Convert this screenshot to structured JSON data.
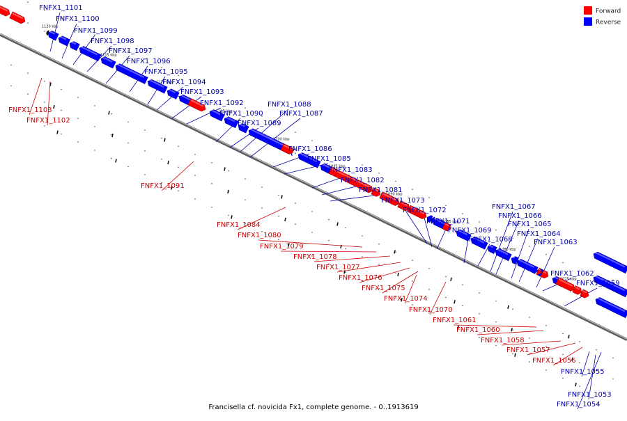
{
  "colors": {
    "forward": "#ff0000",
    "reverse": "#0000ff",
    "forward_label": "#cc0000",
    "reverse_label": "#0000aa",
    "backbone": "#808080"
  },
  "legend": [
    {
      "label": "Forward",
      "color": "#ff0000"
    },
    {
      "label": "Reverse",
      "color": "#0000ff"
    }
  ],
  "caption": "Francisella cf. novicida Fx1, complete genome. - 0..1913619",
  "ticks": [
    "1120 kbp",
    "1115 kbp",
    "1110 kbp",
    "1105 kbp",
    "1100 kbp",
    "1095 kbp",
    "1090 kbp",
    "1085 kbp",
    "1080 kbp",
    "1075 kbp"
  ],
  "genes": [
    {
      "id": "FNFX1_1103",
      "strand": "forward"
    },
    {
      "id": "FNFX1_1102",
      "strand": "forward"
    },
    {
      "id": "FNFX1_1101",
      "strand": "reverse"
    },
    {
      "id": "FNFX1_1100",
      "strand": "reverse"
    },
    {
      "id": "FNFX1_1099",
      "strand": "reverse"
    },
    {
      "id": "FNFX1_1098",
      "strand": "reverse"
    },
    {
      "id": "FNFX1_1097",
      "strand": "reverse"
    },
    {
      "id": "FNFX1_1096",
      "strand": "reverse"
    },
    {
      "id": "FNFX1_1095",
      "strand": "reverse"
    },
    {
      "id": "FNFX1_1094",
      "strand": "reverse"
    },
    {
      "id": "FNFX1_1093",
      "strand": "reverse"
    },
    {
      "id": "FNFX1_1092",
      "strand": "reverse"
    },
    {
      "id": "FNFX1_1091",
      "strand": "forward"
    },
    {
      "id": "FNFX1_1090",
      "strand": "reverse"
    },
    {
      "id": "FNFX1_1089",
      "strand": "reverse"
    },
    {
      "id": "FNFX1_1088",
      "strand": "reverse"
    },
    {
      "id": "FNFX1_1087",
      "strand": "reverse"
    },
    {
      "id": "FNFX1_1086",
      "strand": "reverse"
    },
    {
      "id": "FNFX1_1085",
      "strand": "reverse"
    },
    {
      "id": "FNFX1_1084",
      "strand": "forward"
    },
    {
      "id": "FNFX1_1083",
      "strand": "reverse"
    },
    {
      "id": "FNFX1_1082",
      "strand": "reverse"
    },
    {
      "id": "FNFX1_1081",
      "strand": "reverse"
    },
    {
      "id": "FNFX1_1080",
      "strand": "forward"
    },
    {
      "id": "FNFX1_1079",
      "strand": "forward"
    },
    {
      "id": "FNFX1_1078",
      "strand": "forward"
    },
    {
      "id": "FNFX1_1077",
      "strand": "forward"
    },
    {
      "id": "FNFX1_1076",
      "strand": "forward"
    },
    {
      "id": "FNFX1_1075",
      "strand": "forward"
    },
    {
      "id": "FNFX1_1074",
      "strand": "forward"
    },
    {
      "id": "FNFX1_1073",
      "strand": "reverse"
    },
    {
      "id": "FNFX1_1072",
      "strand": "reverse"
    },
    {
      "id": "FNFX1_1071",
      "strand": "reverse"
    },
    {
      "id": "FNFX1_1070",
      "strand": "forward"
    },
    {
      "id": "FNFX1_1069",
      "strand": "reverse"
    },
    {
      "id": "FNFX1_1068",
      "strand": "reverse"
    },
    {
      "id": "FNFX1_1067",
      "strand": "reverse"
    },
    {
      "id": "FNFX1_1066",
      "strand": "reverse"
    },
    {
      "id": "FNFX1_1065",
      "strand": "reverse"
    },
    {
      "id": "FNFX1_1064",
      "strand": "reverse"
    },
    {
      "id": "FNFX1_1063",
      "strand": "reverse"
    },
    {
      "id": "FNFX1_1062",
      "strand": "reverse"
    },
    {
      "id": "FNFX1_1061",
      "strand": "forward"
    },
    {
      "id": "FNFX1_1060",
      "strand": "forward"
    },
    {
      "id": "FNFX1_1059",
      "strand": "reverse"
    },
    {
      "id": "FNFX1_1058",
      "strand": "forward"
    },
    {
      "id": "FNFX1_1057",
      "strand": "forward"
    },
    {
      "id": "FNFX1_1056",
      "strand": "forward"
    },
    {
      "id": "FNFX1_1055",
      "strand": "reverse"
    },
    {
      "id": "FNFX1_1054",
      "strand": "reverse"
    },
    {
      "id": "FNFX1_1053",
      "strand": "reverse"
    }
  ]
}
